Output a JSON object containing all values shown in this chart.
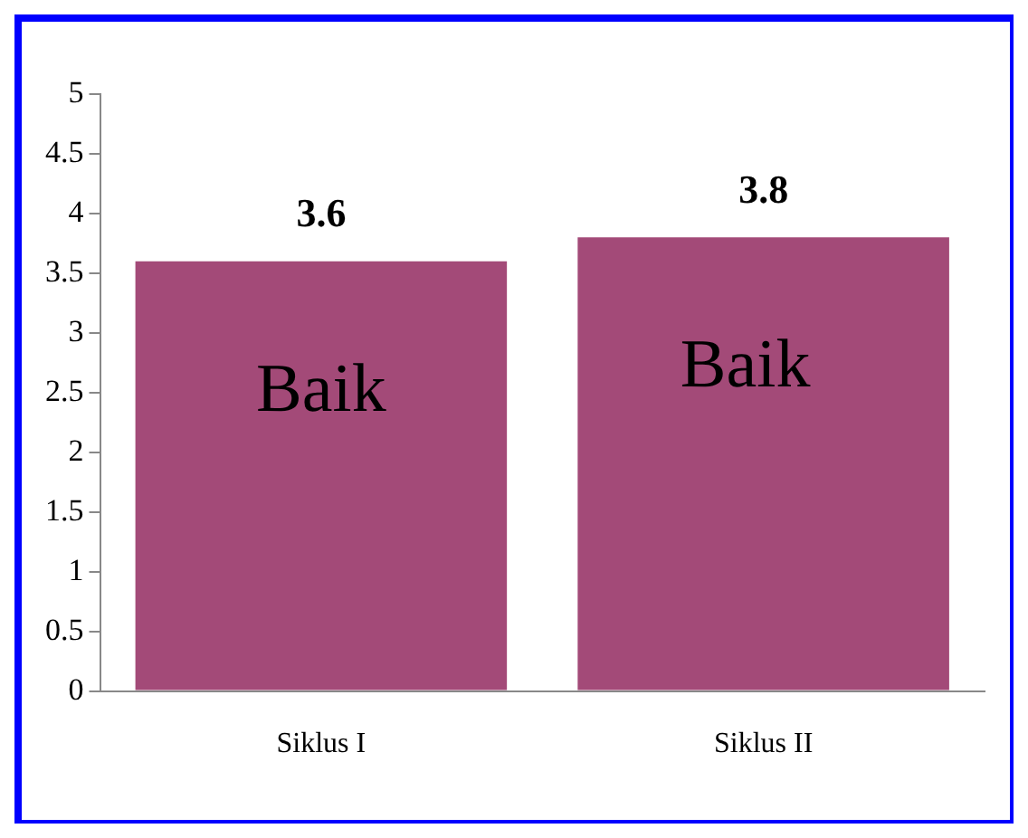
{
  "chart_data": {
    "type": "bar",
    "categories": [
      "Siklus I",
      "Siklus II"
    ],
    "values": [
      3.6,
      3.8
    ],
    "color": "#a34a78",
    "ylim": [
      0,
      5
    ],
    "yticks": [
      0,
      0.5,
      1,
      1.5,
      2,
      2.5,
      3,
      3.5,
      4,
      4.5,
      5
    ],
    "data_labels": true,
    "grid": false,
    "legend": false,
    "annotations": [
      "Baik",
      "Baik"
    ]
  }
}
